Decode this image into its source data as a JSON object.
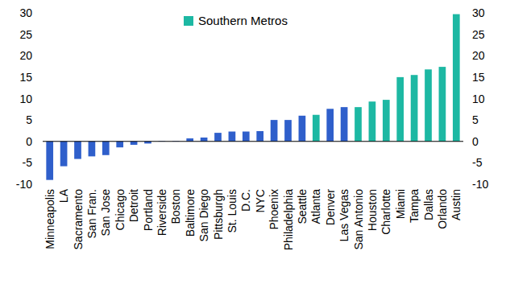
{
  "chart_data": {
    "type": "bar",
    "categories": [
      "Minneapolis",
      "LA",
      "Sacramento",
      "San Fran.",
      "San Jose",
      "Chicago",
      "Detroit",
      "Portland",
      "Riverside",
      "Boston",
      "Baltimore",
      "San Diego",
      "Pittsburgh",
      "St. Louis",
      "D.C.",
      "NYC",
      "Phoenix",
      "Philadelphia",
      "Seattle",
      "Atlanta",
      "Denver",
      "Las Vegas",
      "San Antonio",
      "Houston",
      "Charlotte",
      "Miami",
      "Tampa",
      "Dallas",
      "Orlando",
      "Austin"
    ],
    "series": [
      {
        "color": "#2f5fcb",
        "values": [
          -9.0,
          -5.8,
          -4.1,
          -3.5,
          -3.2,
          -1.4,
          -0.8,
          -0.5,
          0.05,
          0.05,
          0.7,
          0.9,
          2.0,
          2.3,
          2.3,
          2.4,
          5.0,
          5.0,
          6.0,
          null,
          7.6,
          8.0,
          null,
          null,
          null,
          null,
          null,
          null,
          null,
          null
        ]
      },
      {
        "name": "Southern Metros",
        "color": "#1db8a3",
        "values": [
          null,
          null,
          null,
          null,
          null,
          null,
          null,
          null,
          null,
          null,
          null,
          null,
          null,
          null,
          null,
          null,
          null,
          null,
          null,
          6.2,
          null,
          null,
          8.0,
          9.3,
          9.7,
          15.0,
          15.5,
          16.8,
          17.4,
          29.7
        ]
      }
    ],
    "ylim": [
      -10,
      30
    ],
    "yticks": [
      -10,
      -5,
      0,
      5,
      10,
      15,
      20,
      25,
      30
    ],
    "grid": false,
    "legend": "top"
  }
}
